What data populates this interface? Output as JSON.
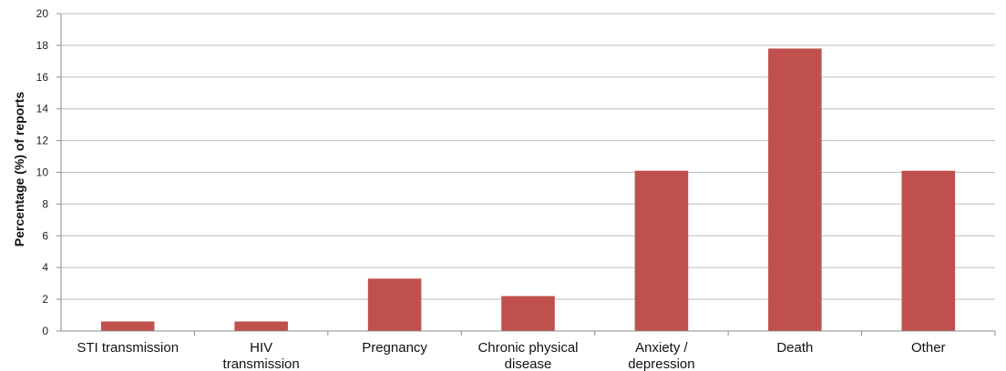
{
  "chart_data": {
    "type": "bar",
    "title": "",
    "xlabel": "",
    "ylabel": "Percentage (%) of reports",
    "ylim": [
      0,
      20
    ],
    "yticks": [
      "0",
      "2",
      "4",
      "6",
      "8",
      "10",
      "12",
      "14",
      "16",
      "18",
      "20"
    ],
    "grid": true,
    "legend": "none",
    "categories": [
      [
        "STI transmission"
      ],
      [
        "HIV",
        "transmission"
      ],
      [
        "Pregnancy"
      ],
      [
        "Chronic physical",
        "disease"
      ],
      [
        "Anxiety /",
        "depression"
      ],
      [
        "Death"
      ],
      [
        "Other"
      ]
    ],
    "values": [
      0.6,
      0.6,
      3.3,
      2.2,
      10.1,
      17.8,
      10.1
    ],
    "colors": {
      "bar": "#c0504d",
      "grid": "#bfbfbf",
      "axis": "#8c8c8c"
    }
  }
}
